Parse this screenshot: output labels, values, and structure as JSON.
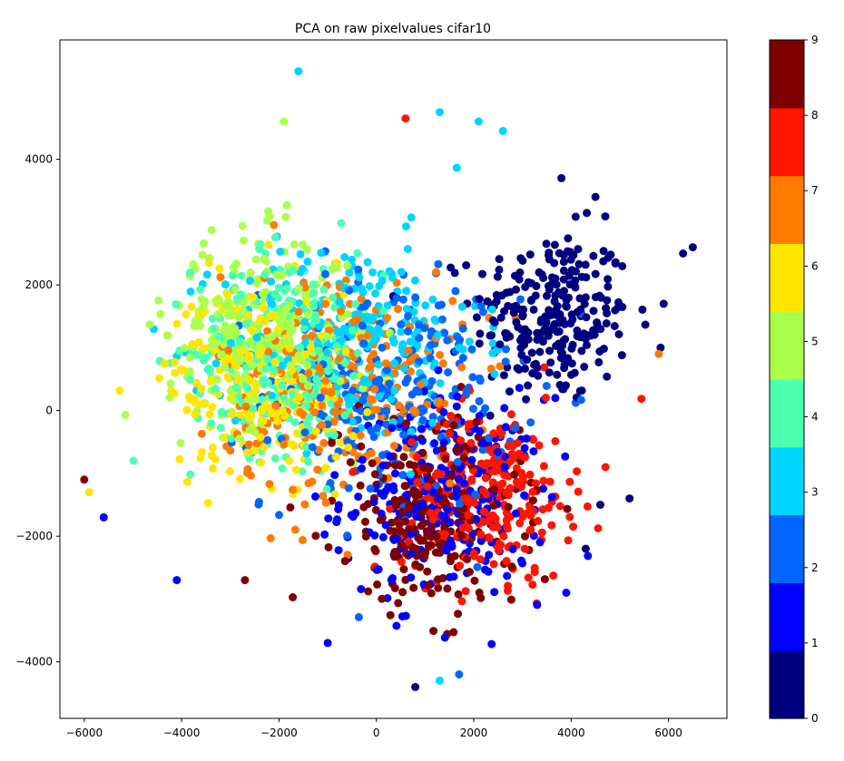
{
  "chart_data": {
    "type": "scatter",
    "title": "PCA on raw pixelvalues cifar10",
    "xlabel": "",
    "ylabel": "",
    "xlim": [
      -6500,
      7200
    ],
    "ylim": [
      -4900,
      5900
    ],
    "x_ticks": [
      -6000,
      -4000,
      -2000,
      0,
      2000,
      4000,
      6000
    ],
    "x_tick_labels": [
      "−6000",
      "−4000",
      "−2000",
      "0",
      "2000",
      "4000",
      "6000"
    ],
    "y_ticks": [
      -4000,
      -2000,
      0,
      2000,
      4000
    ],
    "y_tick_labels": [
      "−4000",
      "−2000",
      "0",
      "2000",
      "4000"
    ],
    "grid": false,
    "colorbar": {
      "min": 0,
      "max": 9,
      "ticks": [
        0,
        1,
        2,
        3,
        4,
        5,
        6,
        7,
        8,
        9
      ],
      "tick_labels": [
        "0",
        "1",
        "2",
        "3",
        "4",
        "5",
        "6",
        "7",
        "8",
        "9"
      ],
      "colors": [
        "#00007f",
        "#0000ff",
        "#0066ff",
        "#00d4ff",
        "#4dffb1",
        "#aaff4d",
        "#ffe600",
        "#ff7a00",
        "#ff1400",
        "#7f0000"
      ]
    },
    "cluster_centers": [
      {
        "label": 0,
        "cx": 3600,
        "cy": 1500,
        "sx": 1300,
        "sy": 1100
      },
      {
        "label": 1,
        "cx": 1400,
        "cy": -1400,
        "sx": 1700,
        "sy": 1300
      },
      {
        "label": 2,
        "cx": 300,
        "cy": 300,
        "sx": 2100,
        "sy": 1500
      },
      {
        "label": 3,
        "cx": -500,
        "cy": 1100,
        "sx": 2100,
        "sy": 1300
      },
      {
        "label": 4,
        "cx": -1800,
        "cy": 900,
        "sx": 1600,
        "sy": 1300
      },
      {
        "label": 5,
        "cx": -2400,
        "cy": 1300,
        "sx": 1500,
        "sy": 1200
      },
      {
        "label": 6,
        "cx": -2300,
        "cy": 500,
        "sx": 1600,
        "sy": 1200
      },
      {
        "label": 7,
        "cx": -700,
        "cy": 400,
        "sx": 2000,
        "sy": 1500
      },
      {
        "label": 8,
        "cx": 2300,
        "cy": -1300,
        "sx": 1400,
        "sy": 1100
      },
      {
        "label": 9,
        "cx": 1100,
        "cy": -1700,
        "sx": 1500,
        "sy": 1200
      }
    ],
    "cluster_size": 260,
    "points": [
      {
        "x": -1600,
        "y": 5400,
        "label": 3
      },
      {
        "x": -1900,
        "y": 4600,
        "label": 5
      },
      {
        "x": 600,
        "y": 4650,
        "label": 8
      },
      {
        "x": 1300,
        "y": 4750,
        "label": 3
      },
      {
        "x": 2100,
        "y": 4600,
        "label": 3
      },
      {
        "x": 2600,
        "y": 4450,
        "label": 3
      },
      {
        "x": 3800,
        "y": 3700,
        "label": 0
      },
      {
        "x": 4500,
        "y": 3400,
        "label": 0
      },
      {
        "x": 6500,
        "y": 2600,
        "label": 0
      },
      {
        "x": 6300,
        "y": 2500,
        "label": 0
      },
      {
        "x": -5900,
        "y": -1300,
        "label": 6
      },
      {
        "x": -6000,
        "y": -1100,
        "label": 9
      },
      {
        "x": -5600,
        "y": -1700,
        "label": 1
      },
      {
        "x": 800,
        "y": -4400,
        "label": 0
      },
      {
        "x": 1700,
        "y": -4200,
        "label": 2
      },
      {
        "x": 1300,
        "y": -4300,
        "label": 3
      },
      {
        "x": 3900,
        "y": -2900,
        "label": 1
      },
      {
        "x": 4300,
        "y": -2200,
        "label": 0
      },
      {
        "x": 5800,
        "y": 900,
        "label": 7
      },
      {
        "x": 5900,
        "y": 1700,
        "label": 0
      },
      {
        "x": -4100,
        "y": -2700,
        "label": 1
      },
      {
        "x": -1000,
        "y": -3700,
        "label": 1
      },
      {
        "x": -2700,
        "y": -2700,
        "label": 9
      },
      {
        "x": 4600,
        "y": -1500,
        "label": 0
      },
      {
        "x": 5200,
        "y": -1400,
        "label": 0
      }
    ]
  }
}
